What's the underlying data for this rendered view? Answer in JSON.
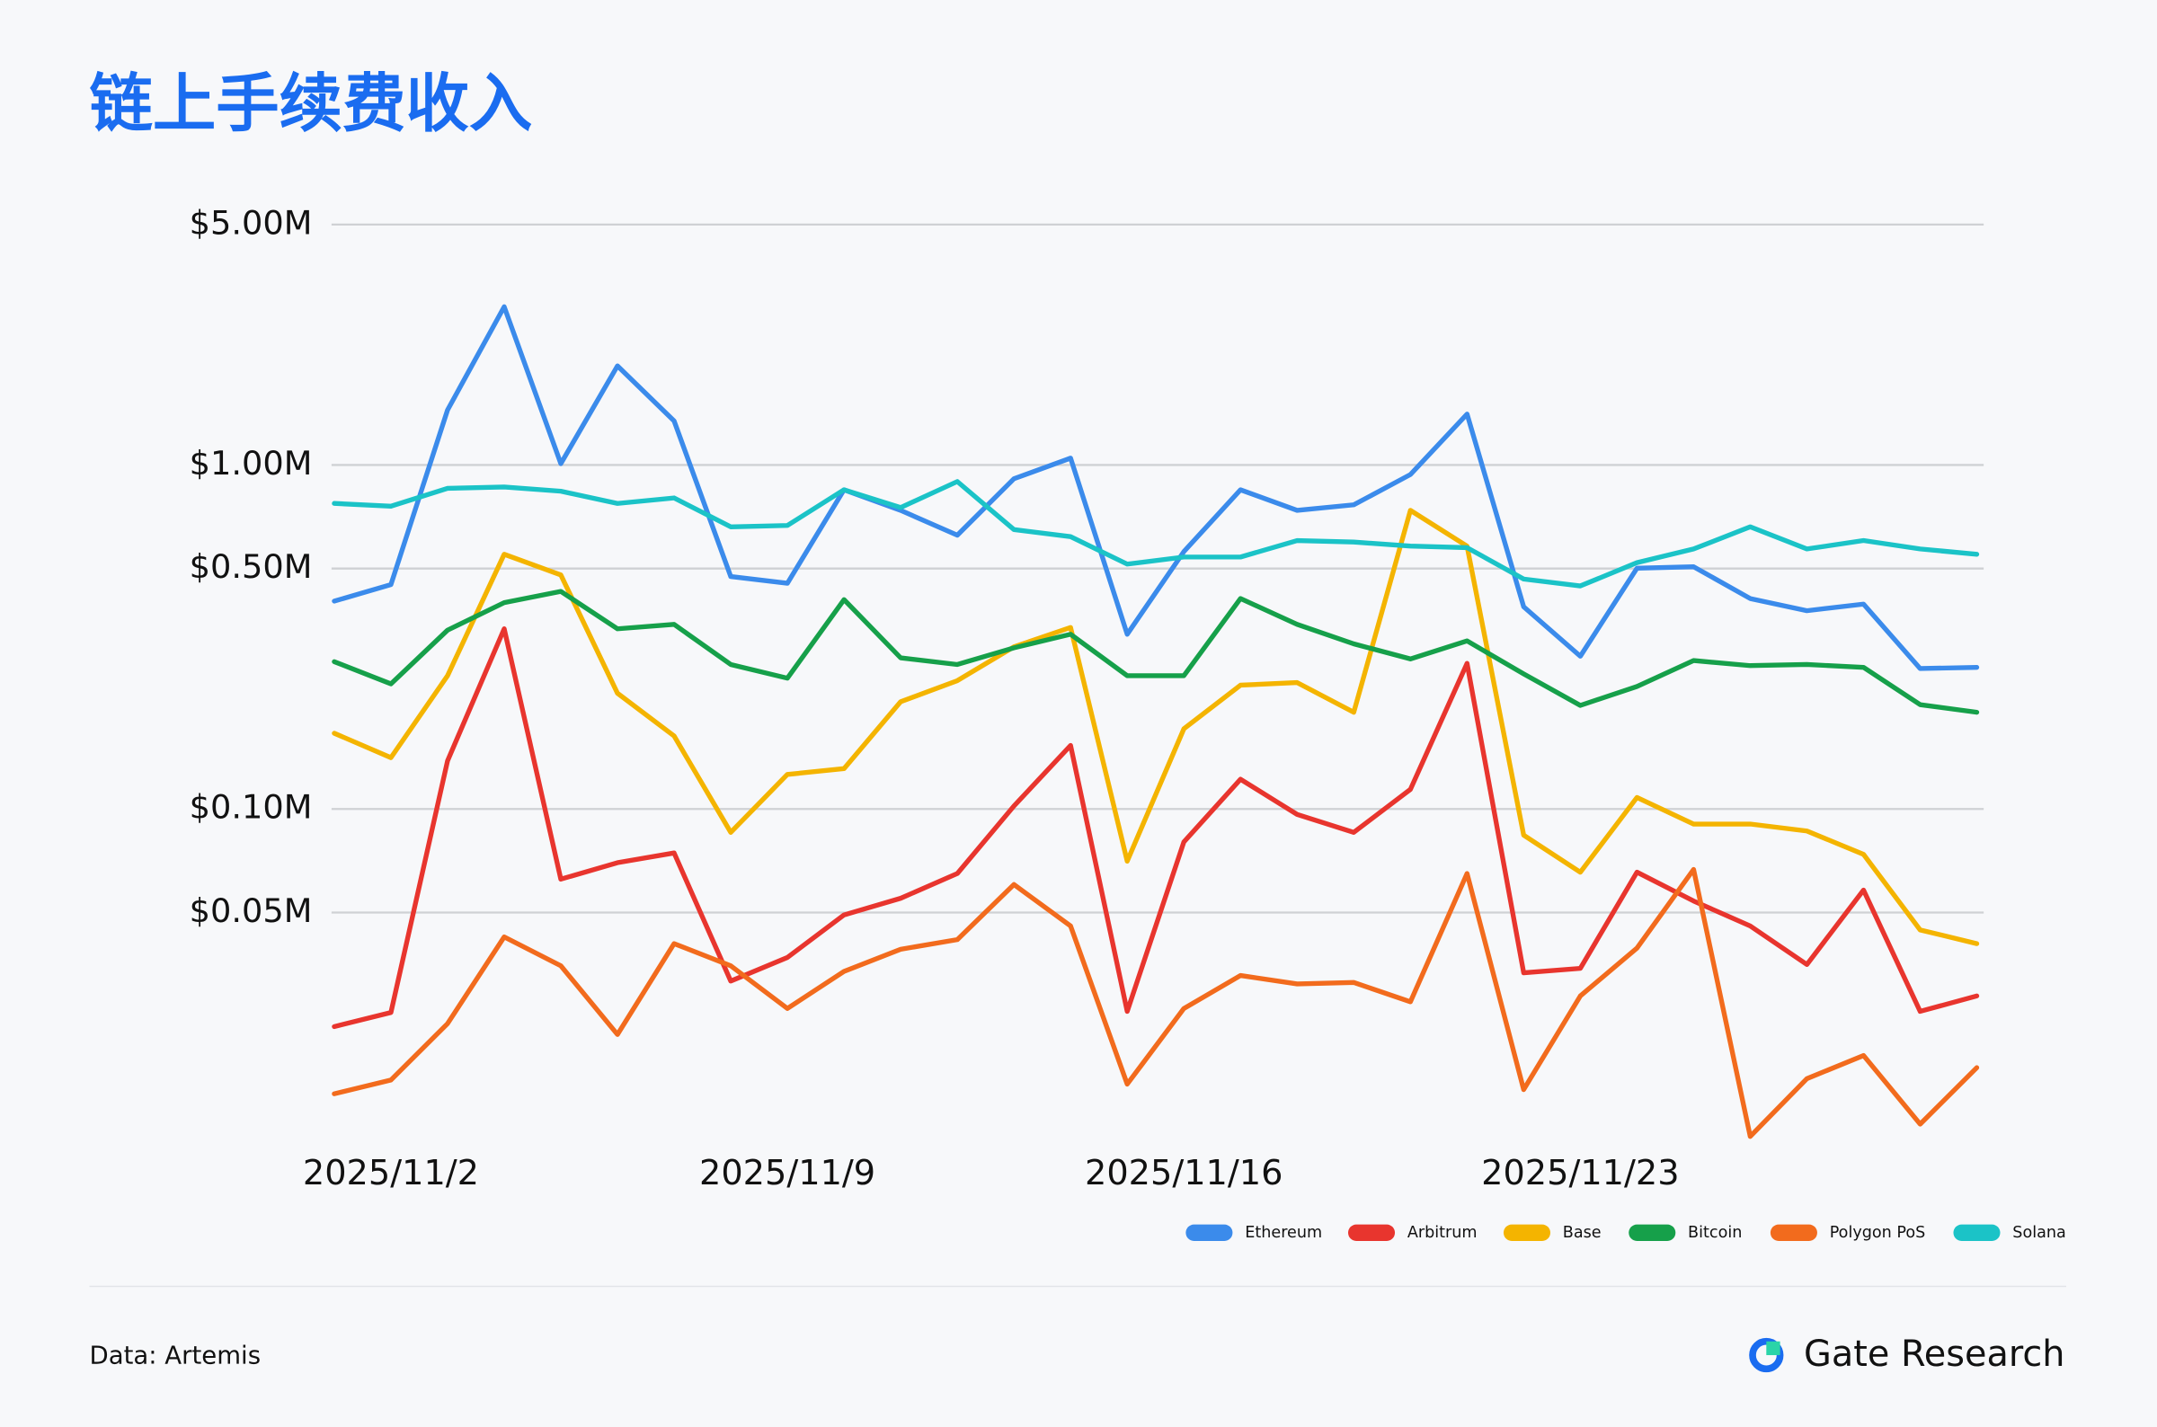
{
  "chart_data": {
    "type": "line",
    "title": "链上手续费收入",
    "categories": [
      null,
      "2025/11/2",
      null,
      null,
      null,
      null,
      null,
      null,
      "2025/11/9",
      null,
      null,
      null,
      null,
      null,
      null,
      "2025/11/16",
      null,
      null,
      null,
      null,
      null,
      null,
      "2025/11/23",
      null,
      null,
      null,
      null,
      null,
      null,
      null
    ],
    "y_scale": "log",
    "ylim": [
      10000,
      5000000
    ],
    "yticks": [
      {
        "value": 50000,
        "label": "$0.05M"
      },
      {
        "value": 100000,
        "label": "$0.10M"
      },
      {
        "value": 500000,
        "label": "$0.50M"
      },
      {
        "value": 1000000,
        "label": "$1.00M"
      },
      {
        "value": 5000000,
        "label": "$5.00M"
      }
    ],
    "grid": true,
    "legend": "bottom-right",
    "series": [
      {
        "name": "Ethereum",
        "color": "#3b8beb",
        "values": [
          402000,
          449000,
          1445000,
          2884000,
          1009000,
          1941000,
          1343000,
          474000,
          453000,
          847000,
          738000,
          625000,
          912000,
          1047000,
          322000,
          560000,
          847000,
          738000,
          766000,
          938000,
          1406000,
          387000,
          278000,
          501000,
          506000,
          409000,
          377000,
          394000,
          256000,
          258000
        ]
      },
      {
        "name": "Arbitrum",
        "color": "#e8352e",
        "values": [
          23300,
          25600,
          138000,
          334000,
          62500,
          69800,
          74500,
          31600,
          37000,
          49200,
          55000,
          64900,
          102000,
          153000,
          25800,
          80200,
          122000,
          96400,
          85500,
          114000,
          265000,
          33400,
          34400,
          65500,
          54000,
          45700,
          35300,
          58100,
          25800,
          28600
        ]
      },
      {
        "name": "Base",
        "color": "#f4b400",
        "values": [
          166000,
          141000,
          244000,
          550000,
          479000,
          217000,
          163000,
          85500,
          126000,
          131000,
          205000,
          236000,
          296000,
          337000,
          70500,
          171000,
          229000,
          233000,
          191000,
          738000,
          581000,
          83900,
          65500,
          108000,
          90400,
          90400,
          86300,
          73800,
          44500,
          40600
        ]
      },
      {
        "name": "Bitcoin",
        "color": "#16a04a",
        "values": [
          268000,
          231000,
          331000,
          398000,
          429000,
          334000,
          344000,
          263000,
          240000,
          406000,
          275000,
          263000,
          294000,
          322000,
          244000,
          244000,
          409000,
          344000,
          302000,
          273000,
          308000,
          247000,
          200000,
          227000,
          270000,
          261000,
          263000,
          258000,
          201000,
          191000
        ]
      },
      {
        "name": "Polygon PoS",
        "color": "#f26b1d",
        "values": [
          14860,
          16290,
          23770,
          42460,
          35000,
          22100,
          40600,
          35000,
          26300,
          33700,
          39100,
          41700,
          60300,
          45700,
          15850,
          26300,
          32800,
          31000,
          31300,
          27500,
          64900,
          15280,
          28600,
          39400,
          66700,
          11170,
          16440,
          19200,
          12130,
          17700
        ]
      },
      {
        "name": "Solana",
        "color": "#1bc3c7",
        "values": [
          773000,
          759000,
          855000,
          863000,
          839000,
          773000,
          802000,
          661000,
          667000,
          847000,
          752000,
          895000,
          649000,
          619000,
          515000,
          540000,
          540000,
          603000,
          597000,
          581000,
          575000,
          466000,
          445000,
          520000,
          570000,
          661000,
          570000,
          603000,
          570000,
          550000
        ]
      }
    ],
    "source": "Data: Artemis",
    "brand": "Gate Research"
  }
}
